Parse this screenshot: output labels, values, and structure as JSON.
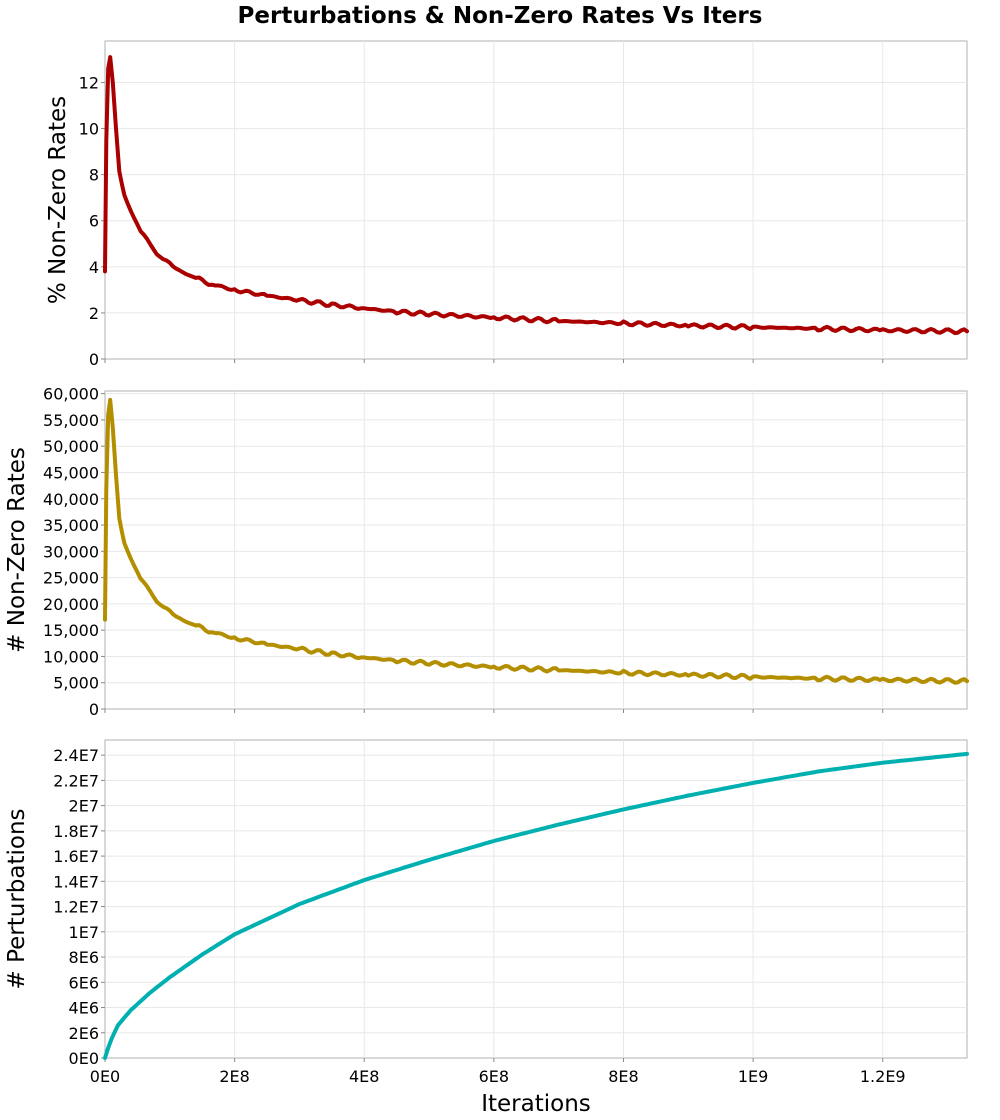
{
  "chart_data": [
    {
      "type": "line",
      "title": "Perturbations & Non-Zero Rates Vs Iters",
      "xlabel": "",
      "ylabel": "% Non-Zero Rates",
      "xlim": [
        0,
        1330000000
      ],
      "ylim": [
        0,
        13.8
      ],
      "x_ticks": [
        0,
        200000000,
        400000000,
        600000000,
        800000000,
        1000000000,
        1200000000
      ],
      "y_ticks": [
        0,
        2,
        4,
        6,
        8,
        10,
        12
      ],
      "y_tick_labels": [
        "0",
        "2",
        "4",
        "6",
        "8",
        "10",
        "12"
      ],
      "grid": true,
      "color": "#aa0000",
      "series": [
        {
          "x": [
            0,
            2000000,
            5000000,
            8000000,
            12000000,
            17000000,
            22000000,
            30000000,
            40000000,
            55000000,
            70000000,
            90000000,
            110000000,
            140000000,
            170000000,
            200000000,
            250000000,
            300000000,
            350000000,
            400000000,
            450000000,
            500000000,
            600000000,
            700000000,
            800000000,
            900000000,
            1000000000,
            1100000000,
            1200000000,
            1330000000
          ],
          "y": [
            3.8,
            9.5,
            12.6,
            13.1,
            12.0,
            10.0,
            8.2,
            7.1,
            6.4,
            5.6,
            4.9,
            4.35,
            3.9,
            3.5,
            3.2,
            3.0,
            2.75,
            2.55,
            2.35,
            2.2,
            2.05,
            1.95,
            1.8,
            1.65,
            1.55,
            1.45,
            1.38,
            1.32,
            1.25,
            1.2
          ]
        }
      ]
    },
    {
      "type": "line",
      "xlabel": "",
      "ylabel": "# Non-Zero Rates",
      "xlim": [
        0,
        1330000000
      ],
      "ylim": [
        0,
        60500
      ],
      "x_ticks": [
        0,
        200000000,
        400000000,
        600000000,
        800000000,
        1000000000,
        1200000000
      ],
      "y_ticks": [
        0,
        5000,
        10000,
        15000,
        20000,
        25000,
        30000,
        35000,
        40000,
        45000,
        50000,
        55000,
        60000
      ],
      "y_tick_labels": [
        "0",
        "5,000",
        "10,000",
        "15,000",
        "20,000",
        "25,000",
        "30,000",
        "35,000",
        "40,000",
        "45,000",
        "50,000",
        "55,000",
        "60,000"
      ],
      "grid": true,
      "color": "#b38f00",
      "series": [
        {
          "x": [
            0,
            2000000,
            5000000,
            8000000,
            12000000,
            17000000,
            22000000,
            30000000,
            40000000,
            55000000,
            70000000,
            90000000,
            110000000,
            140000000,
            170000000,
            200000000,
            250000000,
            300000000,
            350000000,
            400000000,
            450000000,
            500000000,
            600000000,
            700000000,
            800000000,
            900000000,
            1000000000,
            1100000000,
            1200000000,
            1330000000
          ],
          "y": [
            17000,
            42000,
            56000,
            58800,
            53500,
            44500,
            36500,
            31500,
            28500,
            25000,
            22000,
            19500,
            17500,
            15800,
            14500,
            13500,
            12300,
            11400,
            10500,
            9800,
            9200,
            8700,
            8000,
            7400,
            6900,
            6500,
            6100,
            5800,
            5550,
            5300
          ]
        }
      ]
    },
    {
      "type": "line",
      "xlabel": "Iterations",
      "ylabel": "# Perturbations",
      "xlim": [
        0,
        1330000000
      ],
      "ylim": [
        0,
        25200000
      ],
      "x_ticks": [
        0,
        200000000,
        400000000,
        600000000,
        800000000,
        1000000000,
        1200000000
      ],
      "x_tick_labels": [
        "0E0",
        "2E8",
        "4E8",
        "6E8",
        "8E8",
        "1E9",
        "1.2E9"
      ],
      "y_ticks": [
        0,
        2000000,
        4000000,
        6000000,
        8000000,
        10000000,
        12000000,
        14000000,
        16000000,
        18000000,
        20000000,
        22000000,
        24000000
      ],
      "y_tick_labels": [
        "0E0",
        "2E6",
        "4E6",
        "6E6",
        "8E6",
        "1E7",
        "1.2E7",
        "1.4E7",
        "1.6E7",
        "1.8E7",
        "2E7",
        "2.2E7",
        "2.4E7"
      ],
      "grid": true,
      "color": "#00b0b0",
      "series": [
        {
          "x": [
            0,
            5000000,
            10000000,
            20000000,
            40000000,
            70000000,
            100000000,
            150000000,
            200000000,
            250000000,
            300000000,
            400000000,
            500000000,
            600000000,
            700000000,
            800000000,
            900000000,
            1000000000,
            1100000000,
            1200000000,
            1330000000
          ],
          "y": [
            0,
            800000,
            1500000,
            2600000,
            3800000,
            5200000,
            6400000,
            8200000,
            9800000,
            11000000,
            12200000,
            14100000,
            15700000,
            17200000,
            18500000,
            19700000,
            20800000,
            21800000,
            22700000,
            23400000,
            24100000
          ]
        }
      ]
    }
  ]
}
